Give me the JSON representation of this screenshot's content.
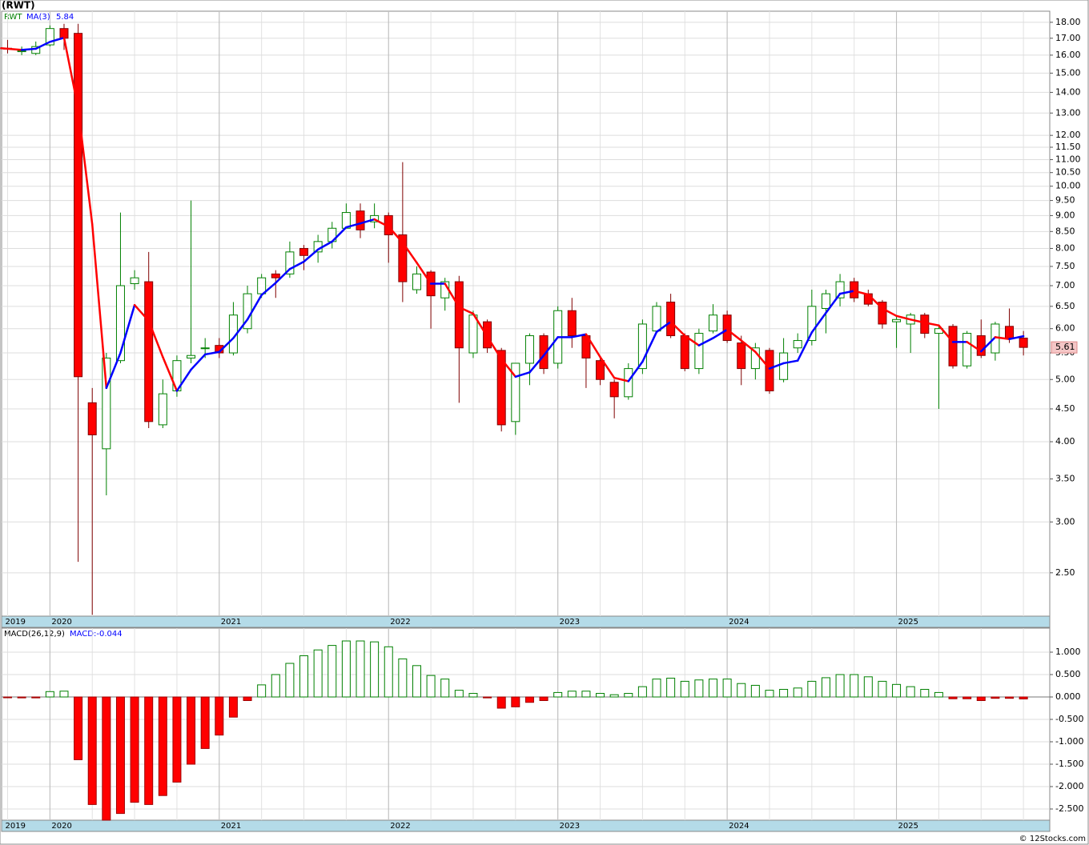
{
  "chart_data": [
    {
      "type": "candlestick",
      "title": "(RWT)",
      "symbol": "RWT",
      "ylog": true,
      "grid": true,
      "up_color": "#008000",
      "down_color": "#ff0000",
      "ma": {
        "name": "MA(3)",
        "up_color": "#0000ff",
        "down_color": "#ff0000",
        "values": [
          16.4,
          16.3,
          16.37,
          16.78,
          17.03,
          13.22,
          8.72,
          4.85,
          5.5,
          6.53,
          6.17,
          5.42,
          4.8,
          5.18,
          5.47,
          5.52,
          5.8,
          6.2,
          6.77,
          7.07,
          7.43,
          7.63,
          7.97,
          8.2,
          8.63,
          8.75,
          8.88,
          8.65,
          8.17,
          7.6,
          7.05,
          7.05,
          6.48,
          6.33,
          5.83,
          5.38,
          5.05,
          5.13,
          5.45,
          5.82,
          5.82,
          5.88,
          5.42,
          5.03,
          4.97,
          5.33,
          5.93,
          6.15,
          5.85,
          5.65,
          5.8,
          5.98,
          5.75,
          5.52,
          5.2,
          5.3,
          5.35,
          5.92,
          6.35,
          6.8,
          6.87,
          6.78,
          6.45,
          6.28,
          6.2,
          6.13,
          6.07,
          5.72,
          5.72,
          5.53,
          5.82,
          5.78,
          5.84
        ]
      },
      "open": [
        16.4,
        16.2,
        16.1,
        16.6,
        17.6,
        17.3,
        4.6,
        3.9,
        5.35,
        7.05,
        7.1,
        4.25,
        4.8,
        5.4,
        5.6,
        5.65,
        5.5,
        6.0,
        6.8,
        7.3,
        7.3,
        8.0,
        7.9,
        8.2,
        8.6,
        9.15,
        8.8,
        9.0,
        8.4,
        6.9,
        7.35,
        6.7,
        7.1,
        5.5,
        6.15,
        5.55,
        4.3,
        5.3,
        5.85,
        5.3,
        6.4,
        5.85,
        5.35,
        4.95,
        4.7,
        5.2,
        5.95,
        6.6,
        5.85,
        5.2,
        5.95,
        6.3,
        5.7,
        5.2,
        5.55,
        5.0,
        5.6,
        5.75,
        6.45,
        6.7,
        7.1,
        6.8,
        6.6,
        6.15,
        6.1,
        6.3,
        5.9,
        6.05,
        5.25,
        5.85,
        5.5,
        6.05,
        5.8
      ],
      "high": [
        16.9,
        16.5,
        16.8,
        17.8,
        17.9,
        17.9,
        4.85,
        5.5,
        9.1,
        7.4,
        7.9,
        5.0,
        5.45,
        9.5,
        5.8,
        5.8,
        6.6,
        7.0,
        7.3,
        7.4,
        8.2,
        8.1,
        8.4,
        8.8,
        9.4,
        9.4,
        9.4,
        9.1,
        10.9,
        7.5,
        7.4,
        7.2,
        7.25,
        6.4,
        6.2,
        5.6,
        5.3,
        5.9,
        5.9,
        6.5,
        6.7,
        5.9,
        5.4,
        5.0,
        5.3,
        6.2,
        6.6,
        6.8,
        5.9,
        6.0,
        6.55,
        6.4,
        5.85,
        5.7,
        5.6,
        5.8,
        5.9,
        6.9,
        6.9,
        7.3,
        7.2,
        6.9,
        6.65,
        6.3,
        6.35,
        6.35,
        6.05,
        6.1,
        5.95,
        6.2,
        6.15,
        6.45,
        5.95
      ],
      "low": [
        16.1,
        16.0,
        16.0,
        16.5,
        16.3,
        2.6,
        2.15,
        3.3,
        5.3,
        6.9,
        4.2,
        4.2,
        4.7,
        5.3,
        5.4,
        5.4,
        5.45,
        5.9,
        6.7,
        6.7,
        7.2,
        7.4,
        7.6,
        8.0,
        8.6,
        8.3,
        8.6,
        7.6,
        6.6,
        6.8,
        6.0,
        6.4,
        4.6,
        5.4,
        5.5,
        4.15,
        4.1,
        4.9,
        5.1,
        5.2,
        5.6,
        4.85,
        4.9,
        4.35,
        4.65,
        5.1,
        5.9,
        5.8,
        5.15,
        5.1,
        5.9,
        5.7,
        4.9,
        5.0,
        4.75,
        4.95,
        5.5,
        5.65,
        5.9,
        6.5,
        6.6,
        6.5,
        6.0,
        5.6,
        5.5,
        5.8,
        4.5,
        5.2,
        5.2,
        5.4,
        5.35,
        5.7,
        5.45
      ],
      "close": [
        16.35,
        16.25,
        16.5,
        17.6,
        17.0,
        5.05,
        4.1,
        5.4,
        7.0,
        7.2,
        4.3,
        4.75,
        5.35,
        5.45,
        5.6,
        5.5,
        6.3,
        6.8,
        7.2,
        7.2,
        7.9,
        7.8,
        8.2,
        8.6,
        9.1,
        8.55,
        9.0,
        8.4,
        7.1,
        7.3,
        6.75,
        7.1,
        5.6,
        6.3,
        5.6,
        4.25,
        5.3,
        5.85,
        5.2,
        6.4,
        5.85,
        5.4,
        5.0,
        4.7,
        5.2,
        6.1,
        6.5,
        5.85,
        5.2,
        5.9,
        6.3,
        5.75,
        5.2,
        5.6,
        4.8,
        5.5,
        5.75,
        6.5,
        6.8,
        7.1,
        6.7,
        6.55,
        6.1,
        6.2,
        6.3,
        5.9,
        6.0,
        5.25,
        5.9,
        5.45,
        6.1,
        5.8,
        5.61
      ],
      "ylim": [
        2.14,
        18.73
      ],
      "yticks": [
        {
          "value": 18,
          "label": "18.00"
        },
        {
          "value": 17,
          "label": "17.00"
        },
        {
          "value": 16,
          "label": "16.00"
        },
        {
          "value": 15,
          "label": "15.00"
        },
        {
          "value": 14,
          "label": "14.00"
        },
        {
          "value": 13,
          "label": "13.00"
        },
        {
          "value": 12,
          "label": "12.00"
        },
        {
          "value": 11.5,
          "label": "11.50"
        },
        {
          "value": 11,
          "label": "11.00"
        },
        {
          "value": 10.5,
          "label": "10.50"
        },
        {
          "value": 10,
          "label": "10.00"
        },
        {
          "value": 9.5,
          "label": "9.50"
        },
        {
          "value": 9,
          "label": "9.00"
        },
        {
          "value": 8.5,
          "label": "8.50"
        },
        {
          "value": 8,
          "label": "8.00"
        },
        {
          "value": 7.5,
          "label": "7.50"
        },
        {
          "value": 7,
          "label": "7.00"
        },
        {
          "value": 6.5,
          "label": "6.50"
        },
        {
          "value": 6,
          "label": "6.00"
        },
        {
          "value": 5.5,
          "label": "5.50"
        },
        {
          "value": 5,
          "label": "5.00"
        },
        {
          "value": 4.5,
          "label": "4.50"
        },
        {
          "value": 4,
          "label": "4.00"
        },
        {
          "value": 3.5,
          "label": "3.50"
        },
        {
          "value": 3,
          "label": "3.00"
        },
        {
          "value": 2.5,
          "label": "2.50"
        }
      ],
      "xticks": [
        {
          "value": 0,
          "label": "2019"
        },
        {
          "value": 3,
          "label": "2020"
        },
        {
          "value": 15,
          "label": "2021"
        },
        {
          "value": 27,
          "label": "2022"
        },
        {
          "value": 39,
          "label": "2023"
        },
        {
          "value": 51,
          "label": "2024"
        },
        {
          "value": 63,
          "label": "2025"
        }
      ]
    },
    {
      "type": "bar",
      "name": "MACD(26,12,9)",
      "legend_prefix": "MACD:",
      "up_color": "#008000",
      "down_color": "#ff0000",
      "values": [
        -0.01,
        -0.02,
        -0.02,
        0.12,
        0.13,
        -1.4,
        -2.4,
        -2.75,
        -2.6,
        -2.35,
        -2.4,
        -2.2,
        -1.9,
        -1.5,
        -1.15,
        -0.85,
        -0.45,
        -0.08,
        0.27,
        0.5,
        0.75,
        0.92,
        1.05,
        1.15,
        1.25,
        1.25,
        1.23,
        1.12,
        0.85,
        0.7,
        0.48,
        0.4,
        0.15,
        0.08,
        -0.02,
        -0.25,
        -0.22,
        -0.12,
        -0.08,
        0.1,
        0.13,
        0.13,
        0.08,
        0.05,
        0.08,
        0.23,
        0.4,
        0.42,
        0.35,
        0.38,
        0.4,
        0.4,
        0.3,
        0.26,
        0.15,
        0.17,
        0.2,
        0.35,
        0.43,
        0.5,
        0.5,
        0.45,
        0.35,
        0.28,
        0.23,
        0.17,
        0.1,
        -0.04,
        -0.04,
        -0.08,
        -0.03,
        -0.03,
        -0.044
      ],
      "ylim": [
        -2.75,
        1.536
      ],
      "yticks": [
        {
          "value": 1,
          "label": "1.000"
        },
        {
          "value": 0.5,
          "label": "0.500"
        },
        {
          "value": 0,
          "label": "0.000"
        },
        {
          "value": -0.5,
          "label": "-0.500"
        },
        {
          "value": -1,
          "label": "-1.000"
        },
        {
          "value": -1.5,
          "label": "-1.500"
        },
        {
          "value": -2,
          "label": "-2.000"
        },
        {
          "value": -2.5,
          "label": "-2.500"
        }
      ],
      "xticks": [
        {
          "value": 0,
          "label": "2019"
        },
        {
          "value": 3,
          "label": "2020"
        },
        {
          "value": 15,
          "label": "2021"
        },
        {
          "value": 27,
          "label": "2022"
        },
        {
          "value": 39,
          "label": "2023"
        },
        {
          "value": 51,
          "label": "2024"
        },
        {
          "value": 63,
          "label": "2025"
        }
      ]
    }
  ],
  "footer": "© 12Stocks.com"
}
